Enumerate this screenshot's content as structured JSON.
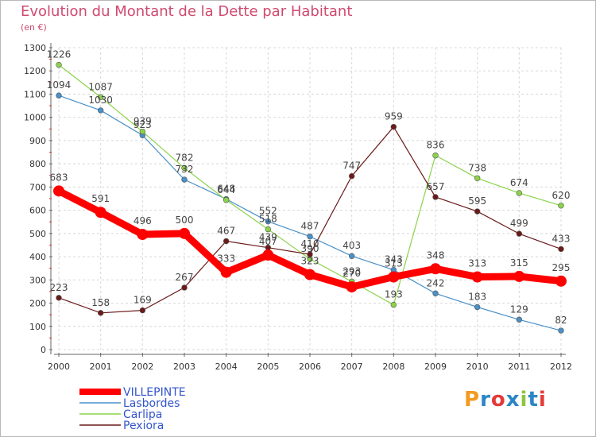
{
  "title": "Evolution du Montant de la Dette par Habitant",
  "subtitle": "(en €)",
  "logo": {
    "text": "Proxiti",
    "colors": [
      "#f39a1e",
      "#2a86c6",
      "#e43a3a",
      "#2a86c6",
      "#8cc63f",
      "#2a86c6",
      "#e43a3a"
    ]
  },
  "chart_data": {
    "type": "line",
    "x": [
      "2000",
      "2001",
      "2002",
      "2003",
      "2004",
      "2005",
      "2006",
      "2007",
      "2008",
      "2009",
      "2010",
      "2011",
      "2012"
    ],
    "ylim": [
      0,
      1300
    ],
    "yticks": [
      0,
      100,
      200,
      300,
      400,
      500,
      600,
      700,
      800,
      900,
      1000,
      1100,
      1200,
      1300
    ],
    "grid": true,
    "legend_position": "bottom-left",
    "series": [
      {
        "name": "Lasbordes",
        "color": "#4a90c8",
        "style": "thin",
        "values": [
          1094,
          1030,
          923,
          732,
          648,
          552,
          487,
          403,
          343,
          242,
          183,
          129,
          82
        ]
      },
      {
        "name": "Carlipa",
        "color": "#8cd34a",
        "style": "thin",
        "values": [
          1226,
          1087,
          939,
          782,
          644,
          518,
          390,
          293,
          193,
          836,
          738,
          674,
          620
        ]
      },
      {
        "name": "Pexiora",
        "color": "#6b1a1a",
        "style": "thin",
        "values": [
          223,
          158,
          169,
          267,
          467,
          439,
          410,
          747,
          959,
          657,
          595,
          499,
          433
        ]
      },
      {
        "name": "VILLEPINTE",
        "color": "#ff0000",
        "style": "thick",
        "values": [
          683,
          591,
          496,
          500,
          333,
          407,
          323,
          270,
          313,
          348,
          313,
          315,
          295
        ]
      }
    ],
    "legend_order": [
      "VILLEPINTE",
      "Lasbordes",
      "Carlipa",
      "Pexiora"
    ],
    "legend_text_colors": {
      "VILLEPINTE": "#3355cc",
      "Lasbordes": "#3355cc",
      "Carlipa": "#3355cc",
      "Pexiora": "#3355cc"
    }
  }
}
